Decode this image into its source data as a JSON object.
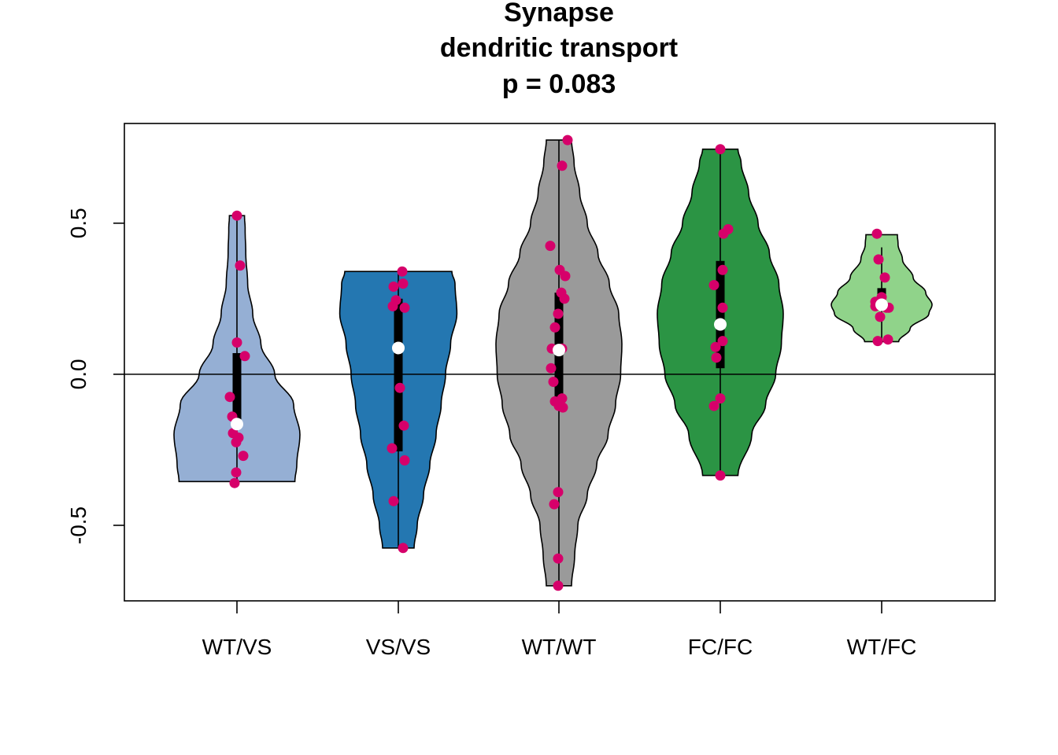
{
  "chart_data": {
    "type": "violin",
    "title_lines": [
      "Synapse",
      "dendritic transport",
      "p = 0.083"
    ],
    "xlabel": "",
    "ylabel": "",
    "ylim": [
      -0.75,
      0.83
    ],
    "yticks": [
      -0.5,
      0.0,
      0.5
    ],
    "ytick_labels": [
      "-0.5",
      "0.0",
      "0.5"
    ],
    "reference_line_y": 0.0,
    "grid": false,
    "point_color": "#D6006A",
    "categories": [
      "WT/VS",
      "VS/VS",
      "WT/WT",
      "FC/FC",
      "WT/FC"
    ],
    "groups": [
      {
        "label": "WT/VS",
        "fill": "#95AFD4",
        "min": -0.355,
        "max": 0.525,
        "q1": -0.18,
        "median": -0.165,
        "q3": 0.07,
        "density": [
          [
            -0.355,
            0.92
          ],
          [
            -0.3,
            0.95
          ],
          [
            -0.2,
            1.0
          ],
          [
            -0.1,
            0.9
          ],
          [
            0.0,
            0.6
          ],
          [
            0.1,
            0.38
          ],
          [
            0.2,
            0.25
          ],
          [
            0.3,
            0.17
          ],
          [
            0.4,
            0.14
          ],
          [
            0.48,
            0.13
          ],
          [
            0.525,
            0.12
          ]
        ],
        "points": [
          0.525,
          0.36,
          0.105,
          0.06,
          -0.075,
          -0.14,
          -0.165,
          -0.195,
          -0.21,
          -0.225,
          -0.27,
          -0.325,
          -0.36
        ],
        "jitter": [
          0.0,
          0.04,
          0.0,
          0.1,
          -0.09,
          -0.06,
          0.0,
          -0.05,
          0.02,
          -0.01,
          0.08,
          -0.01,
          -0.03
        ]
      },
      {
        "label": "VS/VS",
        "fill": "#2477B1",
        "min": -0.575,
        "max": 0.34,
        "q1": -0.255,
        "median": 0.087,
        "q3": 0.25,
        "density": [
          [
            -0.575,
            0.25
          ],
          [
            -0.5,
            0.3
          ],
          [
            -0.4,
            0.4
          ],
          [
            -0.3,
            0.5
          ],
          [
            -0.2,
            0.6
          ],
          [
            -0.1,
            0.68
          ],
          [
            0.0,
            0.75
          ],
          [
            0.1,
            0.83
          ],
          [
            0.2,
            0.93
          ],
          [
            0.3,
            0.9
          ],
          [
            0.34,
            0.85
          ]
        ],
        "points": [
          0.34,
          0.3,
          0.29,
          0.245,
          0.225,
          0.22,
          -0.045,
          -0.17,
          -0.245,
          -0.285,
          -0.42,
          -0.575
        ],
        "jitter": [
          0.05,
          0.06,
          -0.06,
          -0.03,
          -0.07,
          0.08,
          0.02,
          0.07,
          -0.08,
          0.08,
          -0.06,
          0.06
        ]
      },
      {
        "label": "WT/WT",
        "fill": "#9A9A9A",
        "min": -0.7,
        "max": 0.775,
        "q1": -0.08,
        "median": 0.08,
        "q3": 0.27,
        "density": [
          [
            -0.7,
            0.2
          ],
          [
            -0.6,
            0.25
          ],
          [
            -0.5,
            0.3
          ],
          [
            -0.4,
            0.45
          ],
          [
            -0.3,
            0.6
          ],
          [
            -0.2,
            0.78
          ],
          [
            -0.1,
            0.9
          ],
          [
            0.0,
            0.98
          ],
          [
            0.1,
            1.0
          ],
          [
            0.2,
            0.95
          ],
          [
            0.3,
            0.8
          ],
          [
            0.4,
            0.62
          ],
          [
            0.5,
            0.45
          ],
          [
            0.6,
            0.33
          ],
          [
            0.7,
            0.24
          ],
          [
            0.775,
            0.2
          ]
        ],
        "points": [
          0.775,
          0.69,
          0.425,
          0.345,
          0.325,
          0.27,
          0.25,
          0.2,
          0.155,
          0.085,
          0.085,
          0.02,
          -0.025,
          -0.09,
          -0.08,
          -0.105,
          -0.11,
          -0.39,
          -0.43,
          -0.61,
          -0.7
        ],
        "jitter": [
          0.11,
          0.04,
          -0.11,
          0.01,
          0.08,
          0.03,
          0.07,
          -0.01,
          -0.05,
          0.04,
          -0.09,
          -0.1,
          -0.07,
          -0.05,
          0.04,
          0.0,
          0.05,
          -0.01,
          -0.06,
          -0.01,
          -0.01
        ]
      },
      {
        "label": "FC/FC",
        "fill": "#2B9444",
        "min": -0.335,
        "max": 0.745,
        "q1": 0.02,
        "median": 0.165,
        "q3": 0.375,
        "density": [
          [
            -0.335,
            0.28
          ],
          [
            -0.2,
            0.5
          ],
          [
            -0.1,
            0.72
          ],
          [
            0.0,
            0.88
          ],
          [
            0.1,
            0.97
          ],
          [
            0.2,
            1.0
          ],
          [
            0.3,
            0.93
          ],
          [
            0.4,
            0.78
          ],
          [
            0.5,
            0.6
          ],
          [
            0.6,
            0.45
          ],
          [
            0.7,
            0.33
          ],
          [
            0.745,
            0.28
          ]
        ],
        "points": [
          0.745,
          0.48,
          0.465,
          0.345,
          0.295,
          0.22,
          0.11,
          0.09,
          0.055,
          -0.08,
          -0.105,
          -0.335
        ],
        "jitter": [
          0.0,
          0.1,
          0.04,
          0.03,
          -0.08,
          0.03,
          0.03,
          -0.06,
          -0.05,
          0.0,
          -0.08,
          0.0
        ]
      },
      {
        "label": "WT/FC",
        "fill": "#90D38A",
        "min": 0.108,
        "max": 0.462,
        "q1": 0.22,
        "median": 0.23,
        "q3": 0.285,
        "density": [
          [
            0.108,
            0.27
          ],
          [
            0.15,
            0.45
          ],
          [
            0.2,
            0.75
          ],
          [
            0.23,
            0.8
          ],
          [
            0.27,
            0.7
          ],
          [
            0.32,
            0.5
          ],
          [
            0.38,
            0.33
          ],
          [
            0.43,
            0.26
          ],
          [
            0.462,
            0.25
          ]
        ],
        "whisker_max": 0.42,
        "points": [
          0.465,
          0.38,
          0.32,
          0.255,
          0.24,
          0.225,
          0.22,
          0.22,
          0.19,
          0.115,
          0.11
        ],
        "jitter": [
          -0.06,
          -0.04,
          0.04,
          0.0,
          -0.08,
          -0.08,
          0.06,
          0.09,
          -0.02,
          0.08,
          -0.05
        ]
      }
    ]
  }
}
